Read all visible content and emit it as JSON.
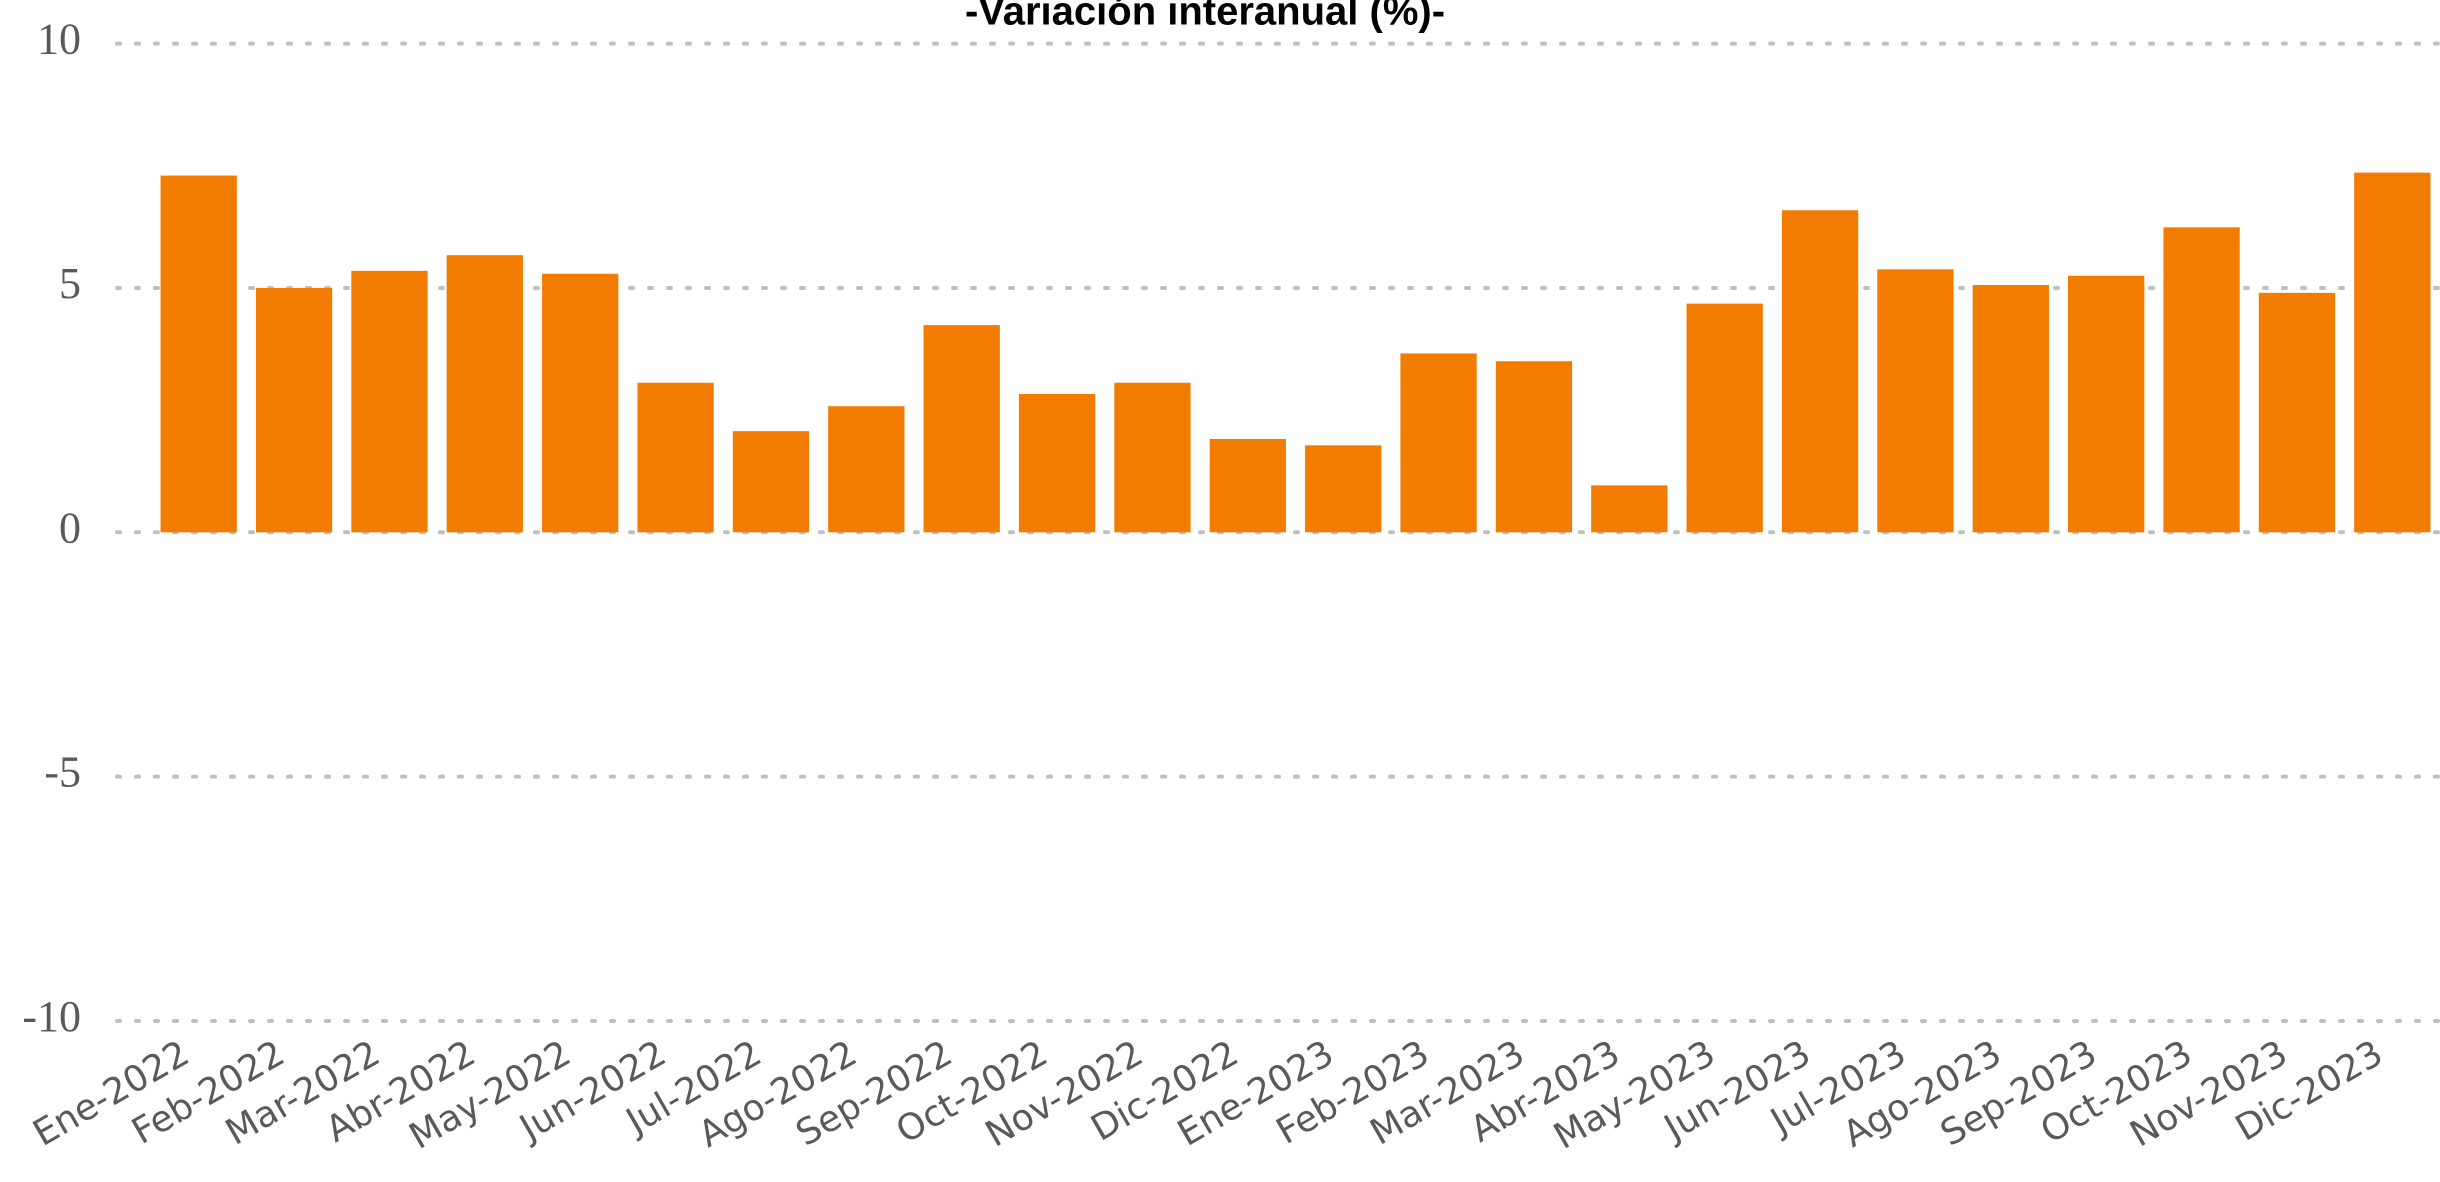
{
  "chart_data": {
    "type": "bar",
    "title": "-Variación interanual (%)-",
    "categories": [
      "Ene-2022",
      "Feb-2022",
      "Mar-2022",
      "Abr-2022",
      "May-2022",
      "Jun-2022",
      "Jul-2022",
      "Ago-2022",
      "Sep-2022",
      "Oct-2022",
      "Nov-2022",
      "Dic-2022",
      "Ene-2023",
      "Feb-2023",
      "Mar-2023",
      "Abr-2023",
      "May-2023",
      "Jun-2023",
      "Jul-2023",
      "Ago-2023",
      "Sep-2023",
      "Oct-2023",
      "Nov-2023",
      "Dic-2023"
    ],
    "values": [
      7.3,
      5.0,
      5.35,
      5.67,
      5.29,
      3.06,
      2.07,
      2.58,
      4.24,
      2.83,
      3.06,
      1.91,
      1.78,
      3.66,
      3.5,
      0.96,
      4.68,
      6.59,
      5.38,
      5.06,
      5.25,
      6.24,
      4.9,
      7.36
    ],
    "color": "#f27c00",
    "ylim": [
      -10,
      10
    ],
    "yticks": [
      -10,
      -5,
      0,
      5,
      10
    ],
    "grid": true
  }
}
